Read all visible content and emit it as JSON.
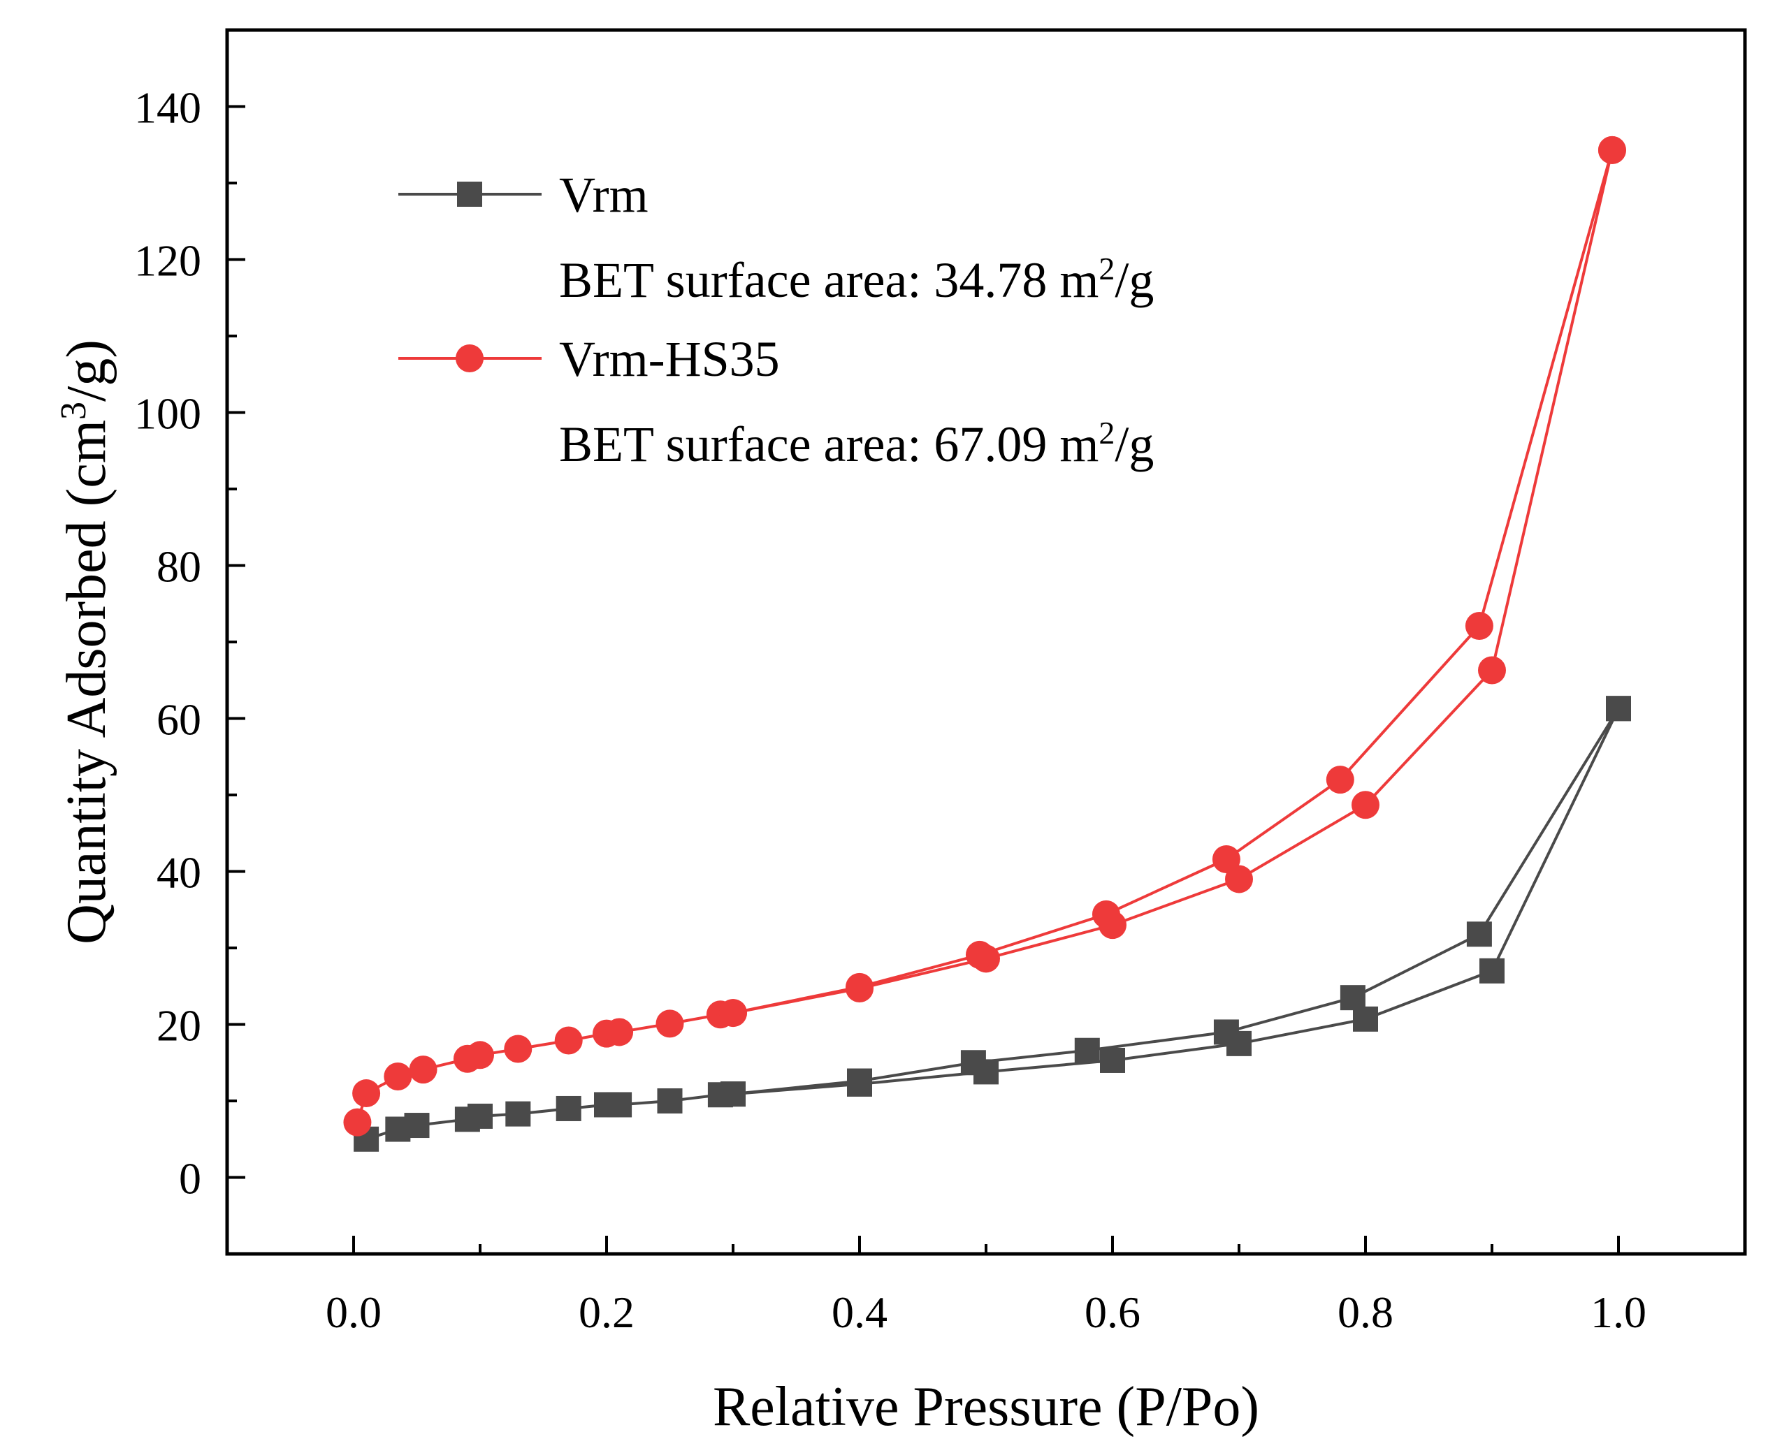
{
  "chart_data": {
    "type": "scatter",
    "title": "",
    "xlabel": "Relative Pressure (P/Po)",
    "ylabel_parts": [
      "Quantity Adsorbed (cm",
      "3",
      "/g)"
    ],
    "xlim": [
      -0.1,
      1.1
    ],
    "ylim": [
      -10,
      150
    ],
    "xticks": [
      0.0,
      0.2,
      0.4,
      0.6,
      0.8,
      1.0
    ],
    "xtick_labels": [
      "0.0",
      "0.2",
      "0.4",
      "0.6",
      "0.8",
      "1.0"
    ],
    "yticks": [
      0,
      20,
      40,
      60,
      80,
      100,
      120,
      140
    ],
    "ytick_labels": [
      "0",
      "20",
      "40",
      "60",
      "80",
      "100",
      "120",
      "140"
    ],
    "x_minor_step": 0.1,
    "y_minor_step": 10,
    "grid": false,
    "legend_position": "top-left",
    "series": [
      {
        "name": "Vrm",
        "annotation_parts": [
          "BET surface area: 34.78 m",
          "2",
          "/g"
        ],
        "color": "#4a4a4a",
        "marker": "square",
        "adsorption": [
          [
            0.01,
            5.0
          ],
          [
            0.035,
            6.3
          ],
          [
            0.05,
            6.8
          ],
          [
            0.09,
            7.6
          ],
          [
            0.1,
            8.0
          ],
          [
            0.13,
            8.3
          ],
          [
            0.17,
            9.0
          ],
          [
            0.2,
            9.5
          ],
          [
            0.21,
            9.5
          ],
          [
            0.25,
            10.0
          ],
          [
            0.29,
            10.8
          ],
          [
            0.3,
            10.9
          ],
          [
            0.4,
            12.2
          ],
          [
            0.5,
            13.8
          ],
          [
            0.6,
            15.3
          ],
          [
            0.7,
            17.5
          ],
          [
            0.8,
            20.7
          ],
          [
            0.9,
            27.0
          ],
          [
            1.0,
            61.3
          ]
        ],
        "desorption": [
          [
            1.0,
            61.3
          ],
          [
            0.89,
            31.8
          ],
          [
            0.79,
            23.5
          ],
          [
            0.69,
            19.0
          ],
          [
            0.58,
            16.6
          ],
          [
            0.49,
            15.0
          ],
          [
            0.4,
            12.6
          ],
          [
            0.3,
            10.9
          ]
        ]
      },
      {
        "name": "Vrm-HS35",
        "annotation_parts": [
          "BET surface area: 67.09 m",
          "2",
          "/g"
        ],
        "color": "#ee3a3a",
        "marker": "circle",
        "adsorption": [
          [
            0.003,
            7.2
          ],
          [
            0.01,
            11.0
          ],
          [
            0.035,
            13.2
          ],
          [
            0.055,
            14.1
          ],
          [
            0.09,
            15.5
          ],
          [
            0.1,
            16.0
          ],
          [
            0.13,
            16.8
          ],
          [
            0.17,
            17.9
          ],
          [
            0.2,
            18.8
          ],
          [
            0.21,
            19.0
          ],
          [
            0.25,
            20.1
          ],
          [
            0.29,
            21.3
          ],
          [
            0.3,
            21.5
          ],
          [
            0.4,
            24.7
          ],
          [
            0.5,
            28.6
          ],
          [
            0.6,
            33.0
          ],
          [
            0.7,
            39.0
          ],
          [
            0.8,
            48.7
          ],
          [
            0.9,
            66.3
          ],
          [
            0.995,
            134.3
          ]
        ],
        "desorption": [
          [
            0.995,
            134.3
          ],
          [
            0.89,
            72.1
          ],
          [
            0.78,
            52.0
          ],
          [
            0.69,
            41.6
          ],
          [
            0.595,
            34.4
          ],
          [
            0.495,
            29.1
          ],
          [
            0.4,
            24.9
          ],
          [
            0.3,
            21.5
          ]
        ]
      }
    ]
  }
}
